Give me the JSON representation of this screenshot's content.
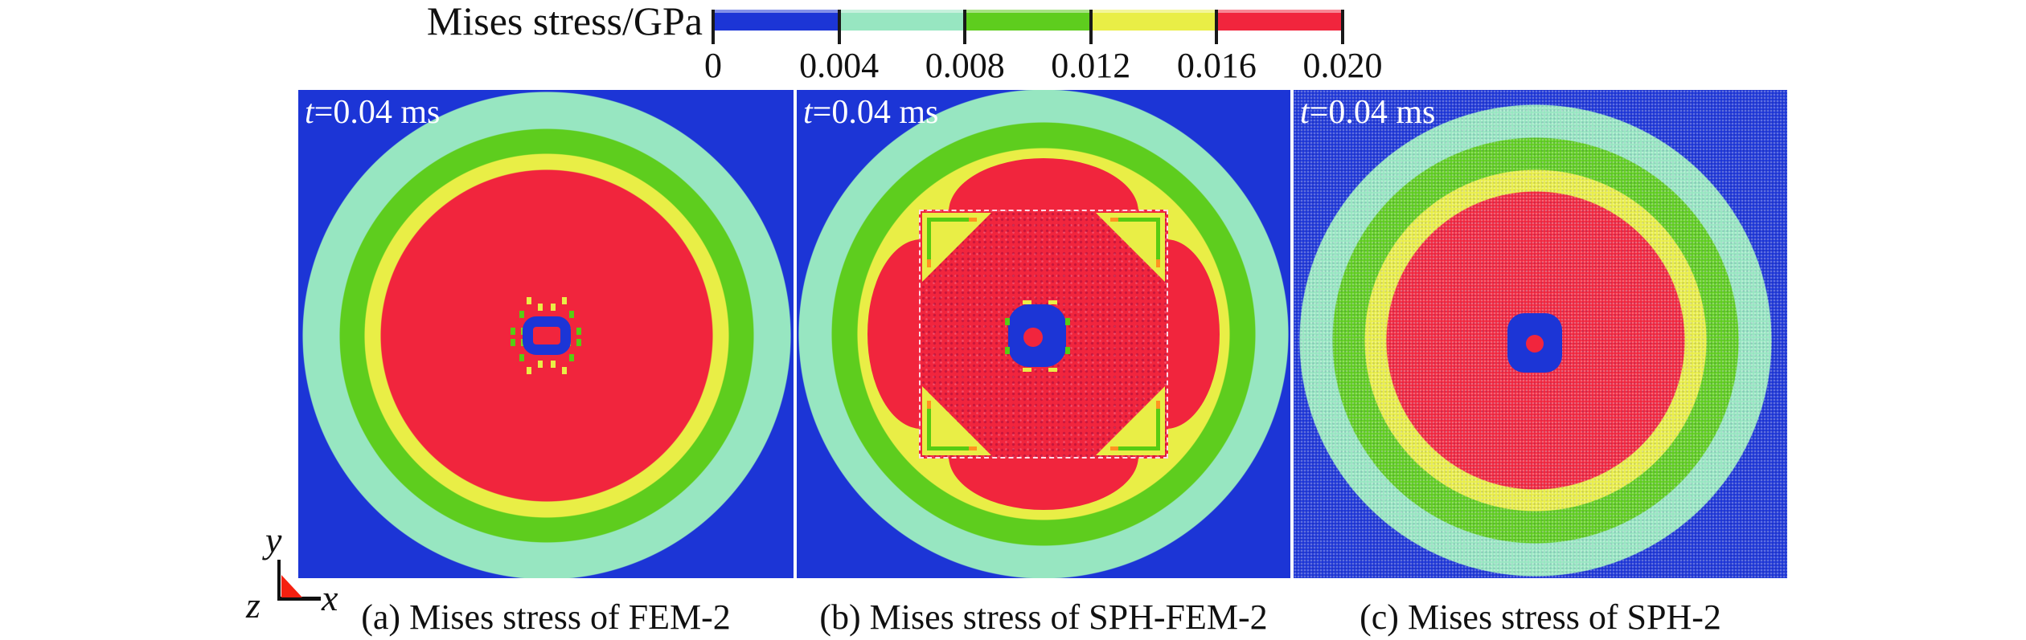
{
  "figure": {
    "colorbar": {
      "title": "Mises stress/GPa",
      "tick_labels": [
        "0",
        "0.004",
        "0.008",
        "0.012",
        "0.016",
        "0.020"
      ],
      "segment_colors": [
        "#1c35d6",
        "#97e6c1",
        "#5ecd1e",
        "#e9ee46",
        "#f1253d"
      ]
    },
    "panels": [
      {
        "time_prefix": "t",
        "time_suffix": "=0.04 ms",
        "caption": "(a) Mises stress of FEM-2"
      },
      {
        "time_prefix": "t",
        "time_suffix": "=0.04 ms",
        "caption": "(b) Mises stress of SPH-FEM-2"
      },
      {
        "time_prefix": "t",
        "time_suffix": "=0.04 ms",
        "caption": "(c) Mises stress of SPH-2"
      }
    ],
    "axes_triad": {
      "x_label": "x",
      "y_label": "y",
      "z_label": "z"
    }
  },
  "chart_data": {
    "type": "heatmap",
    "title": "Mises stress/GPa",
    "subtitle": "t=0.04 ms",
    "levels_gpa": [
      0,
      0.004,
      0.008,
      0.012,
      0.016,
      0.02
    ],
    "level_colors": [
      "#1c35d6",
      "#97e6c1",
      "#5ecd1e",
      "#e9ee46",
      "#f1253d"
    ],
    "legend_position": "top",
    "panels": [
      {
        "label": "(a) Mises stress of FEM-2",
        "method": "FEM-2",
        "time": "t=0.04 ms",
        "pattern": "smooth concentric circular stress contours on blue field with tiny blue ring at impact center",
        "ring_outer_radius_fraction": {
          "red": 0.335,
          "yellow": 0.368,
          "green": 0.418,
          "mint": 0.493
        }
      },
      {
        "label": "(b) Mises stress of SPH-FEM-2",
        "method": "SPH-FEM-2",
        "time": "t=0.04 ms",
        "pattern": "central speckled SPH square (dashed outline, yellow corner wedges, green corner brackets) with four red lobes, surrounded by yellow/green/mint rings; blue scalloped core with red spot",
        "ring_outer_radius_fraction": {
          "yellow": 0.377,
          "green": 0.429,
          "mint": 0.495
        }
      },
      {
        "label": "(c) Mises stress of SPH-2",
        "method": "SPH-2",
        "time": "t=0.04 ms",
        "pattern": "fully particle-speckled field with concentric red/yellow/green/mint rings on blue; blue rounded-square core with red spot",
        "ring_outer_radius_fraction": {
          "red": 0.301,
          "yellow": 0.345,
          "green": 0.41,
          "mint": 0.477
        }
      }
    ]
  }
}
